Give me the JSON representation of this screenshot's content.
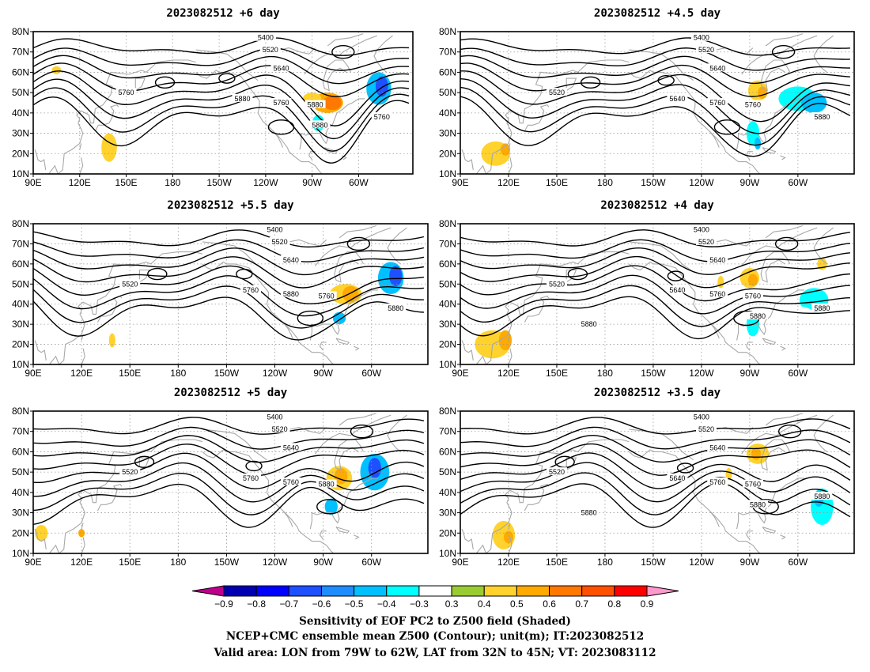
{
  "panels": [
    {
      "title": "2023082512 +6 day",
      "labels": [
        "5400",
        "5520",
        "5640",
        "5760",
        "5880",
        "5760",
        "5880",
        "5760",
        "5880"
      ],
      "blobs": [
        {
          "lon": 139,
          "lat": 25,
          "rx": 3,
          "ry": 4,
          "v": 0.5
        },
        {
          "lon": 139,
          "lat": 23,
          "rx": 5,
          "ry": 7,
          "v": 0.4
        },
        {
          "lon": -80,
          "lat": 45,
          "rx": 10,
          "ry": 5,
          "v": 0.5
        },
        {
          "lon": -77,
          "lat": 45,
          "rx": 6,
          "ry": 3.5,
          "v": 0.6
        },
        {
          "lon": -90,
          "lat": 47,
          "rx": 6,
          "ry": 3,
          "v": 0.4
        },
        {
          "lon": -47,
          "lat": 52,
          "rx": 8,
          "ry": 8,
          "v": -0.5
        },
        {
          "lon": -45,
          "lat": 53,
          "rx": 4,
          "ry": 5,
          "v": -0.7
        },
        {
          "lon": -86,
          "lat": 35,
          "rx": 4,
          "ry": 4,
          "v": -0.4
        },
        {
          "lon": -77,
          "lat": 76,
          "rx": 6,
          "ry": 2.5,
          "v": -0.3
        },
        {
          "lon": 105,
          "lat": 61,
          "rx": 3,
          "ry": 2,
          "v": 0.4
        }
      ]
    },
    {
      "title": "2023082512 +4.5 day",
      "labels": [
        "5400",
        "5520",
        "5640",
        "5520",
        "5640",
        "5760",
        "5760",
        "5880"
      ],
      "blobs": [
        {
          "lon": -85,
          "lat": 51,
          "rx": 6,
          "ry": 5,
          "v": 0.4
        },
        {
          "lon": -82,
          "lat": 50,
          "rx": 3,
          "ry": 3,
          "v": 0.5
        },
        {
          "lon": -60,
          "lat": 47,
          "rx": 12,
          "ry": 6,
          "v": -0.4
        },
        {
          "lon": -50,
          "lat": 45,
          "rx": 8,
          "ry": 5,
          "v": -0.5
        },
        {
          "lon": -88,
          "lat": 30,
          "rx": 4,
          "ry": 6,
          "v": -0.4
        },
        {
          "lon": -85,
          "lat": 25,
          "rx": 2,
          "ry": 3,
          "v": -0.5
        },
        {
          "lon": 112,
          "lat": 20,
          "rx": 9,
          "ry": 6,
          "v": 0.4
        },
        {
          "lon": 118,
          "lat": 22,
          "rx": 3,
          "ry": 3,
          "v": 0.5
        },
        {
          "lon": -72,
          "lat": 76,
          "rx": 5,
          "ry": 2.5,
          "v": -0.3
        }
      ]
    },
    {
      "title": "2023082512 +5.5 day",
      "labels": [
        "5400",
        "5520",
        "5640",
        "5520",
        "5760",
        "5880",
        "5760",
        "5880"
      ],
      "blobs": [
        {
          "lon": -76,
          "lat": 45,
          "rx": 10,
          "ry": 5,
          "v": 0.4
        },
        {
          "lon": -73,
          "lat": 45,
          "rx": 5,
          "ry": 4,
          "v": 0.5
        },
        {
          "lon": -48,
          "lat": 53,
          "rx": 8,
          "ry": 8,
          "v": -0.5
        },
        {
          "lon": -45,
          "lat": 54,
          "rx": 4,
          "ry": 5,
          "v": -0.7
        },
        {
          "lon": -80,
          "lat": 33,
          "rx": 4,
          "ry": 3,
          "v": -0.5
        },
        {
          "lon": 139,
          "lat": 22,
          "rx": 2,
          "ry": 3.5,
          "v": 0.4
        },
        {
          "lon": -75,
          "lat": 78,
          "rx": 5,
          "ry": 2,
          "v": -0.3
        },
        {
          "lon": -93,
          "lat": 47,
          "rx": 3,
          "ry": 2,
          "v": -0.3
        }
      ]
    },
    {
      "title": "2023082512 +4 day",
      "labels": [
        "5400",
        "5520",
        "5640",
        "5520",
        "5640",
        "5760",
        "5760",
        "5880",
        "5880",
        "5880"
      ],
      "blobs": [
        {
          "lon": -90,
          "lat": 53,
          "rx": 6,
          "ry": 5,
          "v": 0.4
        },
        {
          "lon": -88,
          "lat": 52,
          "rx": 3,
          "ry": 3,
          "v": 0.5
        },
        {
          "lon": -50,
          "lat": 42,
          "rx": 9,
          "ry": 6,
          "v": -0.4
        },
        {
          "lon": -60,
          "lat": 30,
          "rx": 14,
          "ry": 9,
          "v": -0.3
        },
        {
          "lon": -88,
          "lat": 30,
          "rx": 4,
          "ry": 6,
          "v": -0.4
        },
        {
          "lon": 110,
          "lat": 20,
          "rx": 11,
          "ry": 7,
          "v": 0.4
        },
        {
          "lon": 118,
          "lat": 22,
          "rx": 4,
          "ry": 5,
          "v": 0.5
        },
        {
          "lon": -108,
          "lat": 51,
          "rx": 2,
          "ry": 3,
          "v": 0.4
        },
        {
          "lon": -45,
          "lat": 60,
          "rx": 3,
          "ry": 3,
          "v": 0.4
        }
      ]
    },
    {
      "title": "2023082512 +5 day",
      "labels": [
        "5400",
        "5520",
        "5640",
        "5520",
        "5760",
        "5760",
        "5880"
      ],
      "blobs": [
        {
          "lon": -80,
          "lat": 47,
          "rx": 8,
          "ry": 6,
          "v": 0.4
        },
        {
          "lon": -79,
          "lat": 48,
          "rx": 4,
          "ry": 4,
          "v": 0.5
        },
        {
          "lon": -58,
          "lat": 50,
          "rx": 9,
          "ry": 9,
          "v": -0.5
        },
        {
          "lon": -58,
          "lat": 52,
          "rx": 4,
          "ry": 5,
          "v": -0.7
        },
        {
          "lon": -85,
          "lat": 33,
          "rx": 4,
          "ry": 4,
          "v": -0.5
        },
        {
          "lon": 95,
          "lat": 20,
          "rx": 4,
          "ry": 4,
          "v": 0.4
        },
        {
          "lon": 120,
          "lat": 20,
          "rx": 2,
          "ry": 2,
          "v": 0.5
        },
        {
          "lon": -120,
          "lat": 77,
          "rx": 8,
          "ry": 2.5,
          "v": -0.3
        },
        {
          "lon": -122,
          "lat": 72,
          "rx": 4,
          "ry": 2,
          "v": -0.3
        }
      ]
    },
    {
      "title": "2023082512 +3.5 day",
      "labels": [
        "5400",
        "5520",
        "5640",
        "5520",
        "5640",
        "5760",
        "5760",
        "5880",
        "5880",
        "5880"
      ],
      "blobs": [
        {
          "lon": -85,
          "lat": 59,
          "rx": 7,
          "ry": 5,
          "v": 0.4
        },
        {
          "lon": -86,
          "lat": 59,
          "rx": 3,
          "ry": 3,
          "v": 0.5
        },
        {
          "lon": -45,
          "lat": 33,
          "rx": 7,
          "ry": 9,
          "v": -0.4
        },
        {
          "lon": -47,
          "lat": 37,
          "rx": 3,
          "ry": 4,
          "v": -0.5
        },
        {
          "lon": -130,
          "lat": 30,
          "rx": 5,
          "ry": 4,
          "v": -0.3
        },
        {
          "lon": 117,
          "lat": 19,
          "rx": 7,
          "ry": 7,
          "v": 0.4
        },
        {
          "lon": 120,
          "lat": 18,
          "rx": 3,
          "ry": 3,
          "v": 0.5
        },
        {
          "lon": -103,
          "lat": 49,
          "rx": 2,
          "ry": 3,
          "v": 0.4
        }
      ]
    }
  ],
  "lat_ticks": [
    "10N",
    "20N",
    "30N",
    "40N",
    "50N",
    "60N",
    "70N",
    "80N"
  ],
  "lon_ticks": [
    "90E",
    "120E",
    "150E",
    "180",
    "150W",
    "120W",
    "90W",
    "60W"
  ],
  "colorbar": {
    "levels": [
      "−0.9",
      "−0.8",
      "−0.7",
      "−0.6",
      "−0.5",
      "−0.4",
      "−0.3",
      "0.3",
      "0.4",
      "0.5",
      "0.6",
      "0.7",
      "0.8",
      "0.9"
    ],
    "colors": [
      "#0000b0",
      "#0000ff",
      "#1e50ff",
      "#1e8cff",
      "#00c0ff",
      "#00ffff",
      "#ffffff",
      "#99cc33",
      "#ffd22d",
      "#ffaa00",
      "#ff7800",
      "#ff5000",
      "#ff0000"
    ],
    "low_color": "#c0008c",
    "high_color": "#ff99cc"
  },
  "caption": {
    "line1": "Sensitivity of EOF PC2 to Z500 field (Shaded)",
    "line2": "NCEP+CMC ensemble mean Z500 (Contour); unit(m); IT:2023082512",
    "line3": "Valid area: LON from 79W to 62W, LAT from 32N to 45N; VT: 2023083112"
  }
}
